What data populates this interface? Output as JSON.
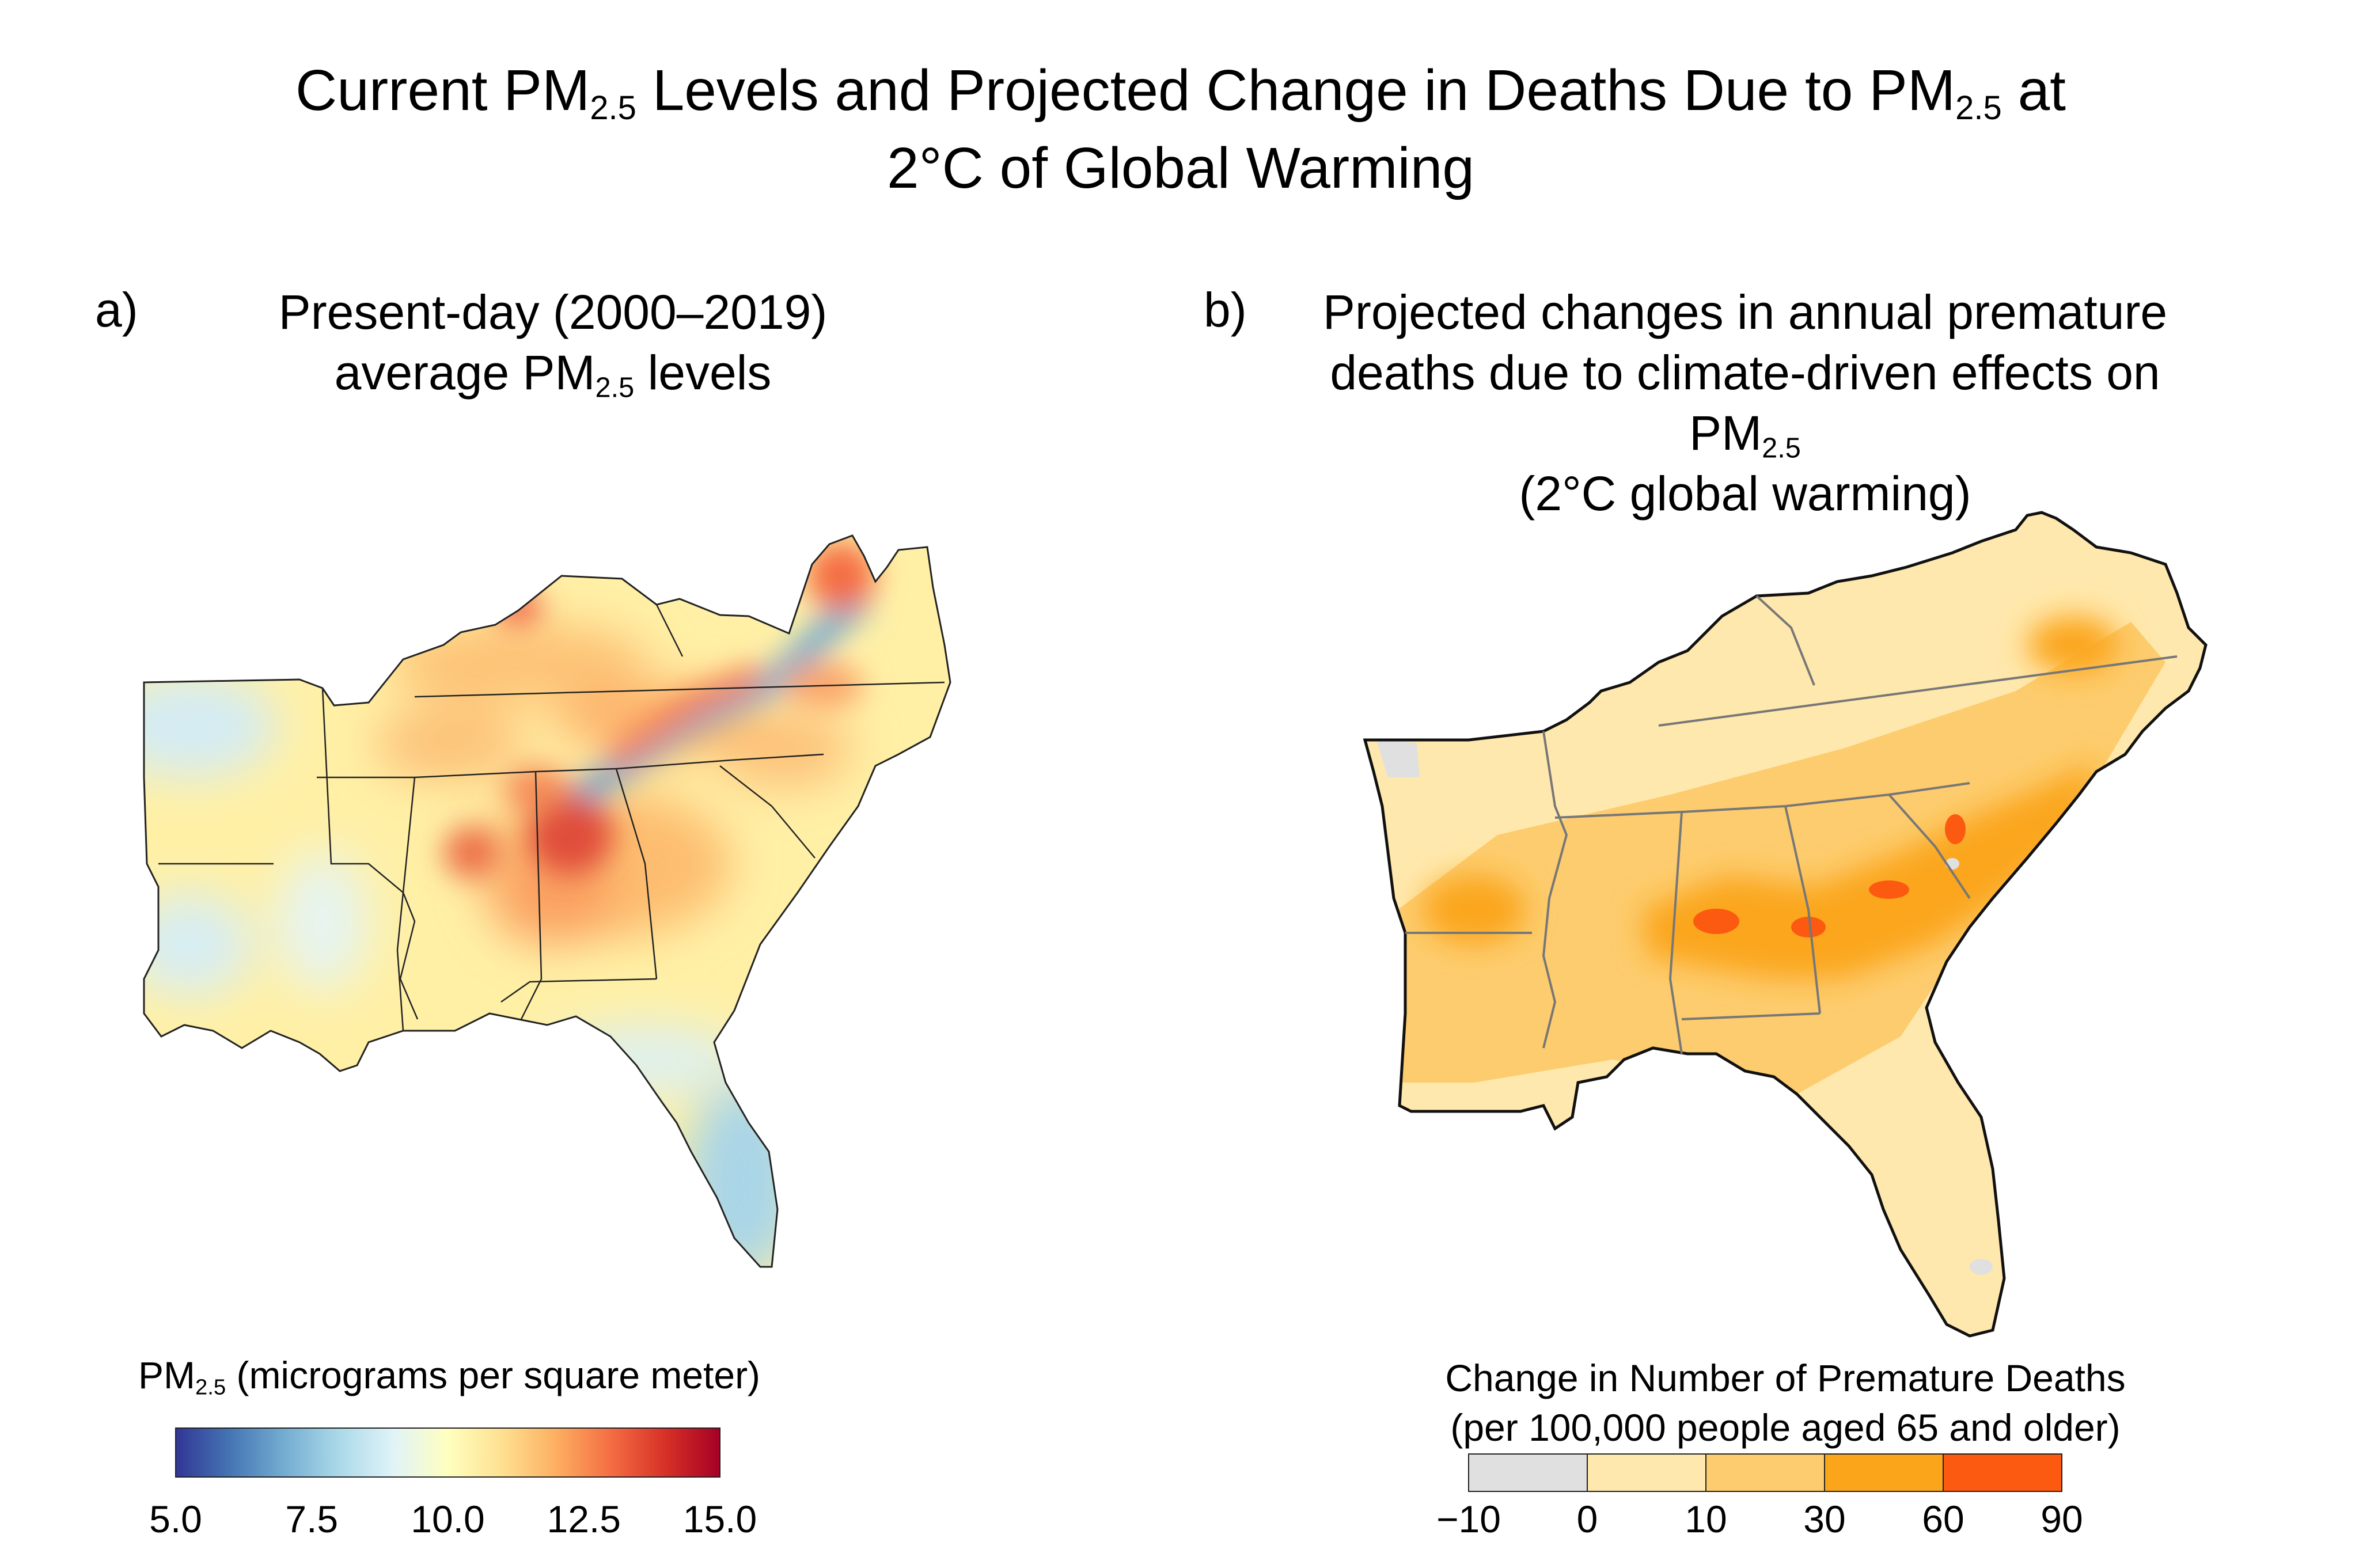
{
  "figure": {
    "title_part1": "Current PM",
    "title_sub1": "2.5",
    "title_part2": " Levels and Projected Change in Deaths Due to PM",
    "title_sub2": "2.5",
    "title_part3": " at",
    "title_line2": "2°C of Global Warming"
  },
  "panel_a": {
    "letter": "a)",
    "title_line1": "Present-day (2000–2019)",
    "title_line2_pre": "average PM",
    "title_line2_sub": "2.5",
    "title_line2_post": " levels",
    "legend": {
      "title_pre": "PM",
      "title_sub": "2.5",
      "title_post": " (micrograms per square meter)",
      "ticks": [
        "5.0",
        "7.5",
        "10.0",
        "12.5",
        "15.0"
      ],
      "colors": [
        "#313695",
        "#4575b4",
        "#74add1",
        "#abd9e9",
        "#e0f3f8",
        "#ffffbf",
        "#fee090",
        "#fdae61",
        "#f46d43",
        "#d73027",
        "#a50026"
      ]
    }
  },
  "panel_b": {
    "letter": "b)",
    "title_line1": "Projected changes in annual premature",
    "title_line2_pre": "deaths due to climate-driven effects on PM",
    "title_line2_sub": "2.5",
    "title_line3": "(2°C global warming)",
    "legend": {
      "title_line1": "Change in Number of Premature Deaths",
      "title_line2": "(per 100,000 people aged 65 and older)",
      "ticks": [
        "−10",
        "0",
        "10",
        "30",
        "60",
        "90"
      ],
      "colors": [
        "#e0e0e0",
        "#ffe8ad",
        "#fdcc6e",
        "#fba61a",
        "#fc5a10"
      ]
    }
  }
}
